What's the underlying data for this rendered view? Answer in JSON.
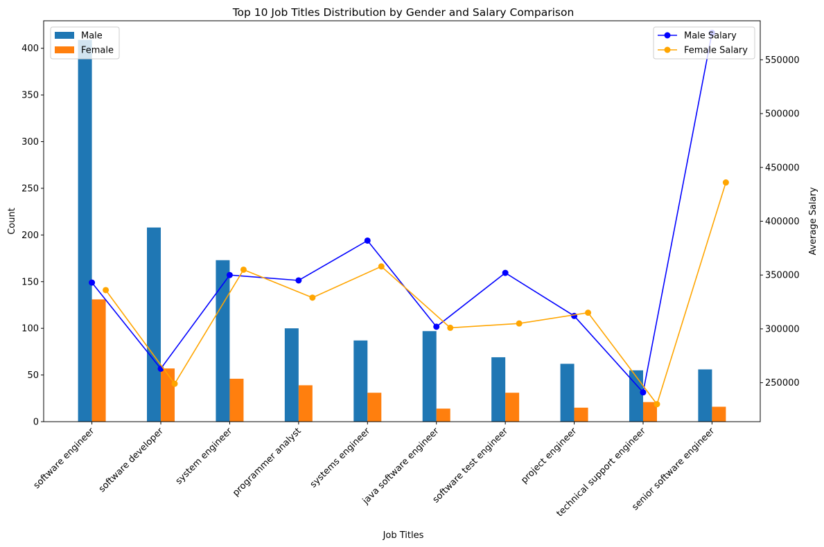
{
  "chart_data": {
    "type": "bar+line",
    "title": "Top 10 Job Titles Distribution by Gender and Salary Comparison",
    "xlabel": "Job Titles",
    "ylabel_left": "Count",
    "ylabel_right": "Average Salary",
    "categories": [
      "software engineer",
      "software developer",
      "system engineer",
      "programmer analyst",
      "systems engineer",
      "java software engineer",
      "software test engineer",
      "project engineer",
      "technical support engineer",
      "senior software engineer"
    ],
    "bar_series": [
      {
        "name": "Male",
        "color": "#1f77b4",
        "values": [
          409,
          208,
          173,
          100,
          87,
          97,
          69,
          62,
          55,
          56
        ]
      },
      {
        "name": "Female",
        "color": "#ff7f0e",
        "values": [
          131,
          57,
          46,
          39,
          31,
          14,
          31,
          15,
          21,
          16
        ]
      }
    ],
    "line_series": [
      {
        "name": "Male Salary",
        "color": "#0000ff",
        "values": [
          343000,
          263000,
          350000,
          345000,
          382000,
          302000,
          352000,
          312000,
          241000,
          575000
        ]
      },
      {
        "name": "Female Salary",
        "color": "#ffa500",
        "values": [
          336000,
          249000,
          355000,
          329000,
          358000,
          301000,
          305000,
          315000,
          230000,
          436000
        ]
      }
    ],
    "ylim_left": [
      0,
      429.45
    ],
    "yticks_left": [
      0,
      50,
      100,
      150,
      200,
      250,
      300,
      350,
      400
    ],
    "ylim_right": [
      213750,
      586250
    ],
    "yticks_right": [
      250000,
      300000,
      350000,
      400000,
      450000,
      500000,
      550000
    ],
    "legend_left_position": "upper-left",
    "legend_right_position": "upper-right",
    "grid": false
  }
}
